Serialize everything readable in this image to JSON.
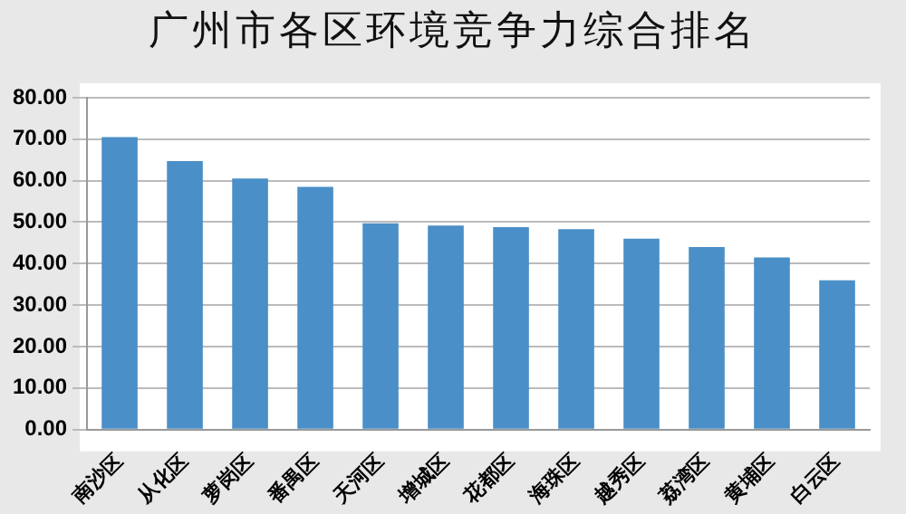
{
  "chart_data": {
    "type": "bar",
    "title": "广州市各区环境竞争力综合排名",
    "categories": [
      "南沙区",
      "从化区",
      "萝岗区",
      "番禺区",
      "天河区",
      "增城区",
      "花都区",
      "海珠区",
      "越秀区",
      "荔湾区",
      "黄埔区",
      "白云区"
    ],
    "values": [
      70.5,
      64.7,
      60.5,
      58.5,
      49.7,
      49.2,
      48.8,
      48.3,
      46,
      44,
      41.5,
      36
    ],
    "color": "#4a8fc7",
    "ylim": [
      0,
      80
    ],
    "yticks": [
      {
        "value": 0,
        "label": "0.00"
      },
      {
        "value": 10,
        "label": "10.00"
      },
      {
        "value": 20,
        "label": "20.00"
      },
      {
        "value": 30,
        "label": "30.00"
      },
      {
        "value": 40,
        "label": "40.00"
      },
      {
        "value": 50,
        "label": "50.00"
      },
      {
        "value": 60,
        "label": "60.00"
      },
      {
        "value": 70,
        "label": "70.00"
      },
      {
        "value": 80,
        "label": "80.00"
      }
    ],
    "grid": "y"
  }
}
